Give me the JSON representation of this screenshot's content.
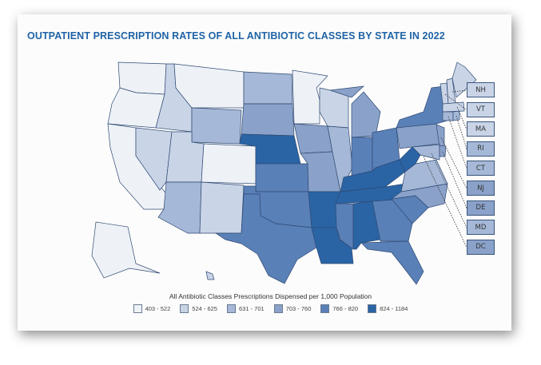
{
  "title": "OUTPATIENT PRESCRIPTION RATES OF ALL ANTIBIOTIC CLASSES BY STATE IN 2022",
  "legend": {
    "title": "All Antibiotic Classes Prescriptions Dispensed per 1,000 Population",
    "classes": [
      {
        "label": "403 - 522",
        "color": "#eef2f7"
      },
      {
        "label": "524 - 625",
        "color": "#c9d4e7"
      },
      {
        "label": "631 - 701",
        "color": "#a5b8d7"
      },
      {
        "label": "703 - 760",
        "color": "#8aa1c9"
      },
      {
        "label": "766 - 820",
        "color": "#5a80b8"
      },
      {
        "label": "824 - 1184",
        "color": "#2a64a5"
      }
    ]
  },
  "states": {
    "WA": 0,
    "OR": 0,
    "CA": 0,
    "MT": 0,
    "ID": 1,
    "NV": 1,
    "UT": 1,
    "AZ": 2,
    "WY": 2,
    "CO": 0,
    "NM": 1,
    "ND": 2,
    "SD": 3,
    "NE": 5,
    "KS": 4,
    "OK": 4,
    "TX": 4,
    "MN": 0,
    "IA": 3,
    "MO": 3,
    "AR": 5,
    "LA": 5,
    "WI": 1,
    "IL": 2,
    "MI": 3,
    "IN": 4,
    "OH": 4,
    "KY": 5,
    "TN": 5,
    "MS": 4,
    "AL": 5,
    "GA": 4,
    "FL": 4,
    "SC": 4,
    "NC": 3,
    "VA": 2,
    "WV": 5,
    "PA": 3,
    "NY": 4,
    "ME": 1,
    "VT": 1,
    "NH": 1,
    "MA": 1,
    "CT": 2,
    "RI": 2,
    "NJ": 3,
    "DE": 3,
    "MD": 2,
    "AK": 0,
    "HI": 1
  },
  "callouts": [
    {
      "label": "NH",
      "class": 1
    },
    {
      "label": "VT",
      "class": 1
    },
    {
      "label": "MA",
      "class": 1
    },
    {
      "label": "RI",
      "class": 2
    },
    {
      "label": "CT",
      "class": 2
    },
    {
      "label": "NJ",
      "class": 3
    },
    {
      "label": "DE",
      "class": 3
    },
    {
      "label": "MD",
      "class": 2
    },
    {
      "label": "DC",
      "class": 3
    }
  ]
}
